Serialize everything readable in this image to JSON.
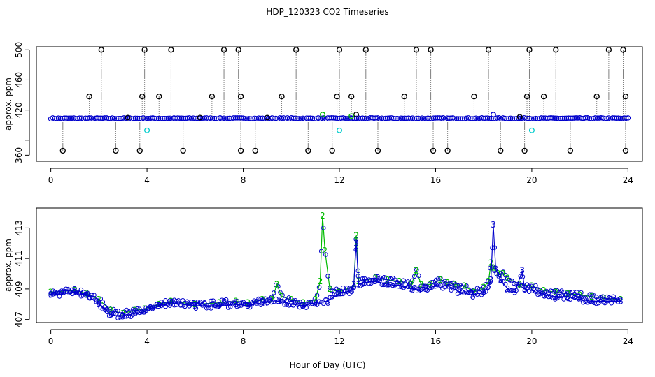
{
  "figure": {
    "title": "HDP_120323  CO2 Timeseries",
    "xlabel": "Hour of Day (UTC)"
  },
  "chart_data": [
    {
      "type": "scatter",
      "ylabel": "approx. ppm",
      "xlim": [
        -0.6,
        24.6
      ],
      "ylim": [
        352,
        504
      ],
      "xticks": [
        0,
        4,
        8,
        12,
        16,
        20,
        24
      ],
      "yticks": [
        360,
        380,
        420,
        460,
        500
      ],
      "ytick_labels": [
        "360",
        "",
        "420",
        "460",
        "500"
      ],
      "baseline_ppm": 409,
      "colors": {
        "raw": "#000000",
        "mean": "#0000cc",
        "flag": "#00cccc",
        "alt": "#00bb00"
      },
      "high_spikes": [
        {
          "x": 1.6,
          "y": 438
        },
        {
          "x": 2.1,
          "y": 500
        },
        {
          "x": 3.8,
          "y": 438
        },
        {
          "x": 3.9,
          "y": 500
        },
        {
          "x": 4.5,
          "y": 438
        },
        {
          "x": 5.0,
          "y": 500
        },
        {
          "x": 6.7,
          "y": 438
        },
        {
          "x": 7.2,
          "y": 500
        },
        {
          "x": 7.8,
          "y": 500
        },
        {
          "x": 7.9,
          "y": 438
        },
        {
          "x": 9.6,
          "y": 438
        },
        {
          "x": 10.2,
          "y": 500
        },
        {
          "x": 11.9,
          "y": 438
        },
        {
          "x": 12.0,
          "y": 500
        },
        {
          "x": 12.5,
          "y": 438
        },
        {
          "x": 13.1,
          "y": 500
        },
        {
          "x": 14.7,
          "y": 438
        },
        {
          "x": 15.2,
          "y": 500
        },
        {
          "x": 15.8,
          "y": 500
        },
        {
          "x": 17.6,
          "y": 438
        },
        {
          "x": 18.2,
          "y": 500
        },
        {
          "x": 19.8,
          "y": 438
        },
        {
          "x": 19.9,
          "y": 500
        },
        {
          "x": 20.5,
          "y": 438
        },
        {
          "x": 21.0,
          "y": 500
        },
        {
          "x": 22.7,
          "y": 438
        },
        {
          "x": 23.2,
          "y": 500
        },
        {
          "x": 23.8,
          "y": 500
        },
        {
          "x": 23.9,
          "y": 438
        }
      ],
      "low_spikes": [
        {
          "x": 0.5,
          "y": 366
        },
        {
          "x": 2.7,
          "y": 366
        },
        {
          "x": 3.7,
          "y": 366
        },
        {
          "x": 5.5,
          "y": 366
        },
        {
          "x": 7.9,
          "y": 366
        },
        {
          "x": 8.5,
          "y": 366
        },
        {
          "x": 10.7,
          "y": 366
        },
        {
          "x": 11.7,
          "y": 366
        },
        {
          "x": 13.6,
          "y": 366
        },
        {
          "x": 15.9,
          "y": 366
        },
        {
          "x": 16.5,
          "y": 366
        },
        {
          "x": 18.7,
          "y": 366
        },
        {
          "x": 19.7,
          "y": 366
        },
        {
          "x": 21.6,
          "y": 366
        },
        {
          "x": 23.9,
          "y": 366
        }
      ],
      "other_points": [
        {
          "x": 3.2,
          "y": 410,
          "series": "raw"
        },
        {
          "x": 6.2,
          "y": 410,
          "series": "raw"
        },
        {
          "x": 9.0,
          "y": 410,
          "series": "raw"
        },
        {
          "x": 12.7,
          "y": 414,
          "series": "raw"
        },
        {
          "x": 11.3,
          "y": 414,
          "series": "alt"
        },
        {
          "x": 12.5,
          "y": 412,
          "series": "alt"
        },
        {
          "x": 18.4,
          "y": 414,
          "series": "mean"
        },
        {
          "x": 19.5,
          "y": 411,
          "series": "raw"
        },
        {
          "x": 4.0,
          "y": 393,
          "series": "flag"
        },
        {
          "x": 12.0,
          "y": 393,
          "series": "flag"
        },
        {
          "x": 20.0,
          "y": 393,
          "series": "flag"
        }
      ]
    },
    {
      "type": "line",
      "ylabel": "approx. ppm",
      "xlim": [
        -0.6,
        24.6
      ],
      "ylim": [
        406.8,
        414.3
      ],
      "xticks": [
        0,
        4,
        8,
        12,
        16,
        20,
        24
      ],
      "yticks": [
        407,
        409,
        411,
        413
      ],
      "series": [
        {
          "color": "#00bb00",
          "symbol": "2",
          "x": [
            0,
            1,
            1.5,
            2,
            2.5,
            3,
            3.5,
            3.9,
            4.5,
            5,
            6,
            7,
            7.7,
            8.2,
            8.8,
            9.2,
            9.4,
            9.6,
            10,
            10.5,
            11,
            11.2,
            11.3,
            11.4,
            11.6,
            12,
            12.6,
            12.7,
            12.8,
            13.5,
            14,
            14.5,
            15,
            15.2,
            15.4,
            15.8,
            16.2,
            16.5,
            16.8,
            17.2,
            17.6,
            18.0,
            18.2,
            18.3,
            18.4,
            18.6,
            18.8,
            19.0,
            19.5,
            20,
            20.5,
            21,
            21.5,
            22,
            22.5,
            23,
            23.7
          ],
          "y": [
            408.8,
            408.9,
            408.7,
            408.3,
            407.6,
            407.4,
            407.6,
            407.7,
            408.0,
            408.2,
            408.0,
            408.1,
            408.2,
            408.1,
            408.3,
            408.3,
            409.3,
            408.5,
            408.3,
            408.1,
            408.3,
            409.5,
            413.8,
            411.5,
            409.0,
            408.8,
            409.2,
            412.5,
            409.5,
            409.7,
            409.6,
            409.5,
            409.3,
            410.2,
            409.3,
            409.3,
            409.6,
            409.4,
            409.3,
            409.2,
            408.8,
            409.1,
            409.5,
            410.7,
            410.4,
            410.0,
            410.0,
            409.7,
            409.3,
            409.2,
            408.9,
            408.8,
            408.7,
            408.6,
            408.5,
            408.4,
            408.3
          ]
        },
        {
          "color": "#0000cc",
          "symbol": "3",
          "x": [
            0,
            1,
            1.5,
            2,
            2.5,
            3,
            3.5,
            3.9,
            4.5,
            5,
            6,
            7,
            7.7,
            8.2,
            8.8,
            9.5,
            10,
            10.5,
            11,
            11.5,
            12,
            12.5,
            12.6,
            12.7,
            12.8,
            13,
            13.5,
            14,
            14.5,
            15,
            15.3,
            15.6,
            16,
            16.5,
            17,
            17.5,
            18.0,
            18.2,
            18.3,
            18.4,
            18.5,
            18.7,
            19.0,
            19.3,
            19.6,
            19.7,
            20,
            20.5,
            21,
            21.5,
            22,
            22.5,
            23,
            23.7
          ],
          "y": [
            408.6,
            408.8,
            408.6,
            408.0,
            407.3,
            407.2,
            407.4,
            407.5,
            407.9,
            408.1,
            407.9,
            407.9,
            408.0,
            407.9,
            408.1,
            408.2,
            408.0,
            407.9,
            408.1,
            408.2,
            408.7,
            408.9,
            409.3,
            412.0,
            409.3,
            409.4,
            409.5,
            409.3,
            409.2,
            409.0,
            408.9,
            409.0,
            409.2,
            409.2,
            408.8,
            408.6,
            408.8,
            409.2,
            409.6,
            413.2,
            410.3,
            409.6,
            409.0,
            408.8,
            410.2,
            409.0,
            408.9,
            408.6,
            408.5,
            408.5,
            408.3,
            408.2,
            408.2,
            408.2
          ]
        }
      ]
    }
  ]
}
